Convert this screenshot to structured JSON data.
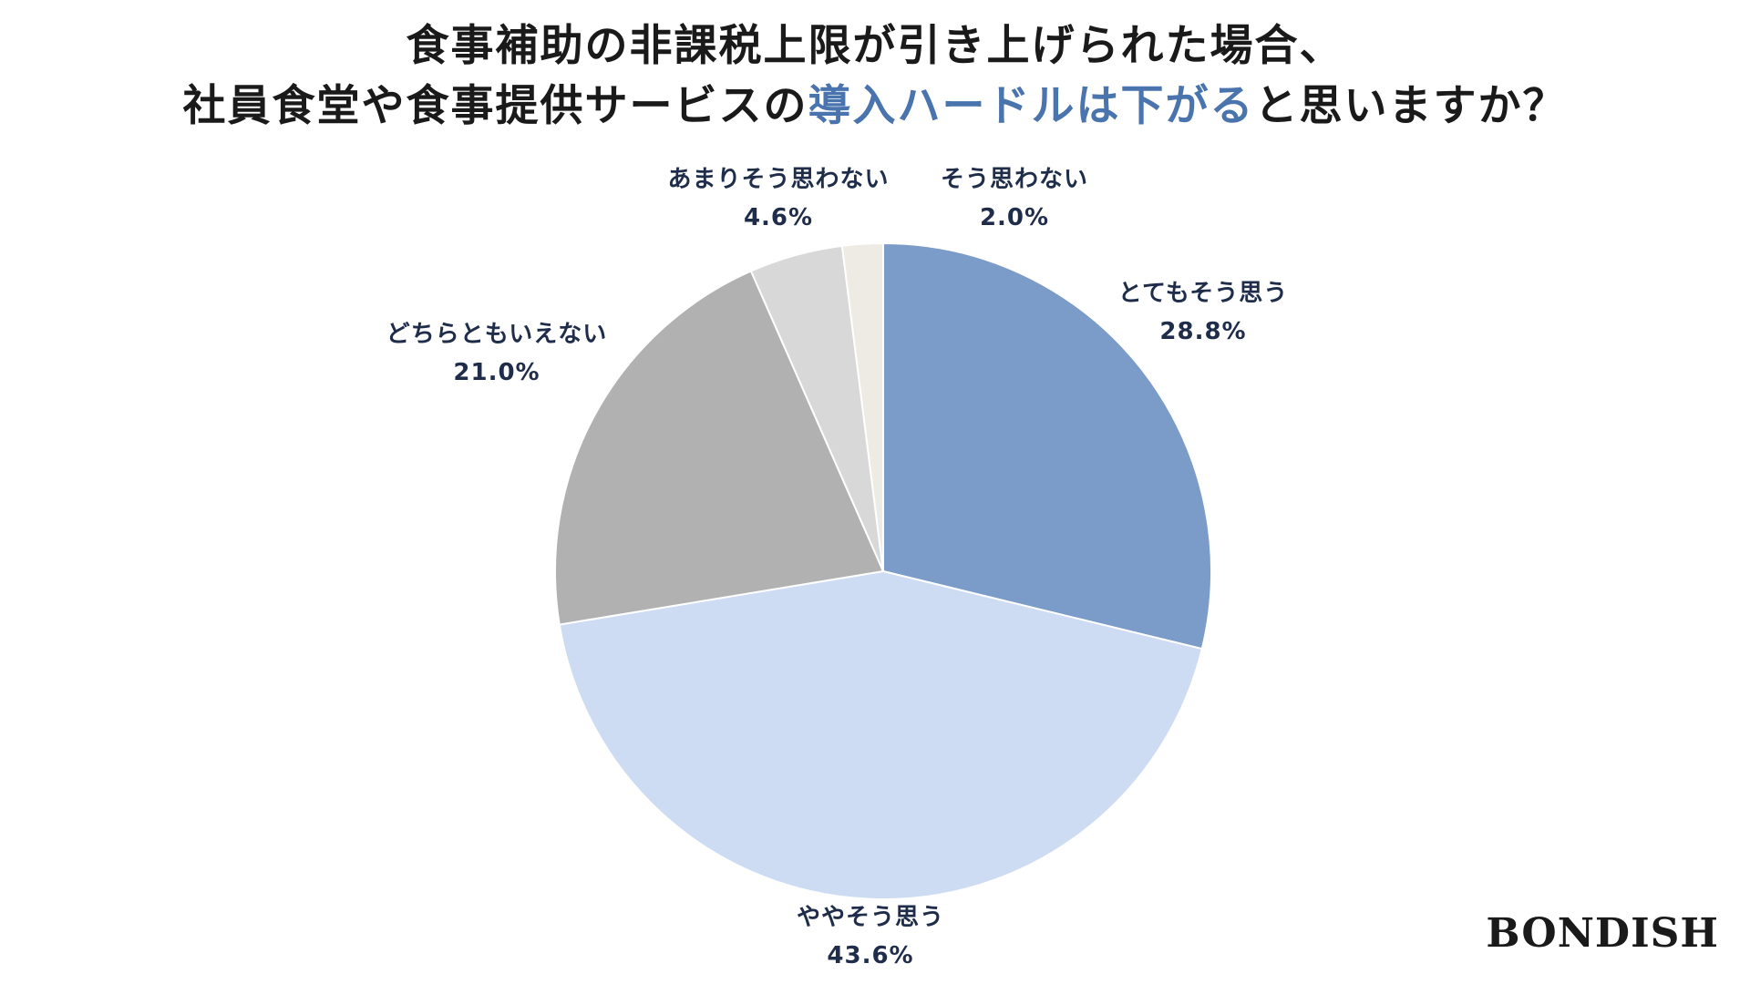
{
  "title": {
    "line1": "食事補助の非課税上限が引き上げられた場合、",
    "line2_before": "社員食堂や食事提供サービスの",
    "line2_highlight": "導入ハードルは下がる",
    "line2_after": "と思いますか？",
    "highlight_color": "#4a74ad"
  },
  "chart_data": {
    "type": "pie",
    "start_angle_deg": 0,
    "direction": "clockwise",
    "slices": [
      {
        "label": "とてもそう思う",
        "value": 28.8,
        "value_text": "28.8%",
        "color": "#7b9bc8"
      },
      {
        "label": "ややそう思う",
        "value": 43.6,
        "value_text": "43.6%",
        "color": "#cddcf2"
      },
      {
        "label": "どちらともいえない",
        "value": 21.0,
        "value_text": "21.0%",
        "color": "#b1b1b1"
      },
      {
        "label": "あまりそう思わない",
        "value": 4.6,
        "value_text": "4.6%",
        "color": "#d8d8d8"
      },
      {
        "label": "そう思わない",
        "value": 2.0,
        "value_text": "2.0%",
        "color": "#eeebe4"
      }
    ]
  },
  "logo": "BONDISH"
}
